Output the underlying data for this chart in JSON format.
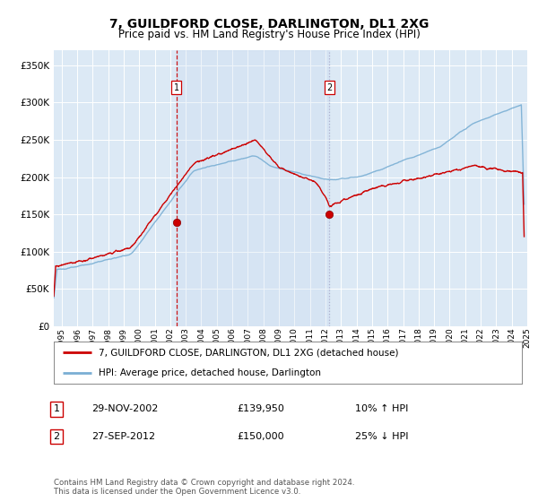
{
  "title": "7, GUILDFORD CLOSE, DARLINGTON, DL1 2XG",
  "subtitle": "Price paid vs. HM Land Registry's House Price Index (HPI)",
  "legend_line1": "7, GUILDFORD CLOSE, DARLINGTON, DL1 2XG (detached house)",
  "legend_line2": "HPI: Average price, detached house, Darlington",
  "transaction1_label": "1",
  "transaction1_date": "29-NOV-2002",
  "transaction1_price": "£139,950",
  "transaction1_hpi": "10% ↑ HPI",
  "transaction2_label": "2",
  "transaction2_date": "27-SEP-2012",
  "transaction2_price": "£150,000",
  "transaction2_hpi": "25% ↓ HPI",
  "footnote": "Contains HM Land Registry data © Crown copyright and database right 2024.\nThis data is licensed under the Open Government Licence v3.0.",
  "ylim": [
    0,
    370000
  ],
  "yticks": [
    0,
    50000,
    100000,
    150000,
    200000,
    250000,
    300000,
    350000
  ],
  "plot_bg": "#dce9f5",
  "grid_color": "#ffffff",
  "line_color_red": "#cc0000",
  "line_color_blue": "#7aafd4",
  "vline1_color": "#cc0000",
  "vline1_style": "--",
  "vline2_color": "#aaaacc",
  "vline2_style": ":",
  "marker1_x": 2002.91,
  "marker1_y": 139950,
  "marker2_x": 2012.74,
  "marker2_y": 150000,
  "xmin": 1995.0,
  "xmax": 2025.5,
  "fig_width": 6.0,
  "fig_height": 5.6,
  "dpi": 100
}
